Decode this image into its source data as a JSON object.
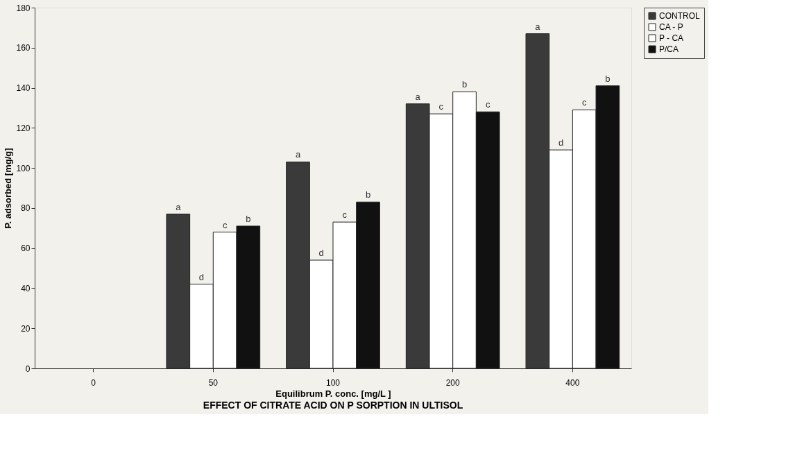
{
  "chart_data": {
    "type": "bar",
    "title": "EFFECT OF CITRATE ACID ON P SORPTION IN ULTISOL",
    "xlabel": "Equilibrum P. conc. [mg/L ]",
    "ylabel": "P. adsorbed [mg/g]",
    "categories": [
      "0",
      "50",
      "100",
      "200",
      "400"
    ],
    "series": [
      {
        "name": "CONTROL",
        "color": "#3a3a3a",
        "values": [
          null,
          77,
          103,
          132,
          167
        ],
        "value_labels": [
          null,
          "a",
          "a",
          "a",
          "a"
        ]
      },
      {
        "name": "CA - P",
        "color": "#ffffff",
        "values": [
          null,
          42,
          54,
          127,
          109
        ],
        "value_labels": [
          null,
          "d",
          "d",
          "c",
          "d"
        ]
      },
      {
        "name": "P - CA",
        "color": "#ffffff",
        "values": [
          null,
          68,
          73,
          138,
          129
        ],
        "value_labels": [
          null,
          "c",
          "c",
          "b",
          "c"
        ]
      },
      {
        "name": "P/CA",
        "color": "#111111",
        "values": [
          null,
          71,
          83,
          128,
          141
        ],
        "value_labels": [
          null,
          "b",
          "b",
          "c",
          "b"
        ]
      }
    ],
    "ylim": [
      0,
      180
    ],
    "yticks": [
      0,
      20,
      40,
      60,
      80,
      100,
      120,
      140,
      160,
      180
    ],
    "grid": false,
    "legend": "right"
  }
}
